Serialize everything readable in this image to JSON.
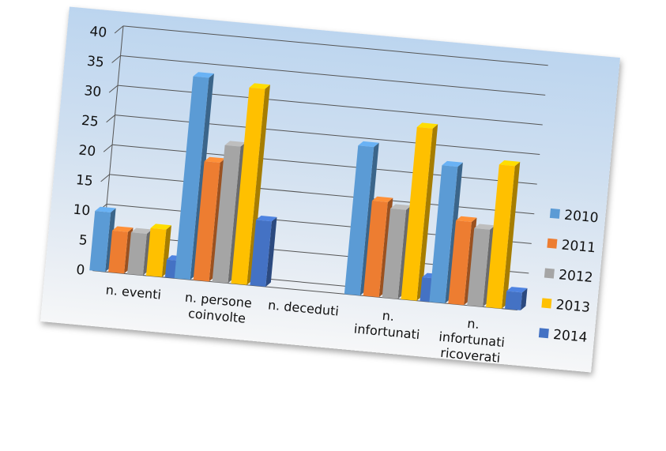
{
  "chart_data": {
    "type": "bar",
    "title": "",
    "xlabel": "",
    "ylabel": "",
    "ylim": [
      0,
      40
    ],
    "yticks": [
      "0",
      "5",
      "10",
      "15",
      "20",
      "25",
      "30",
      "35",
      "40"
    ],
    "categories": [
      [
        "n. eventi"
      ],
      [
        "n. persone",
        "coinvolte"
      ],
      [
        "n. deceduti"
      ],
      [
        "n.",
        "infortunati"
      ],
      [
        "n.",
        "infortunati",
        "ricoverati"
      ]
    ],
    "series": [
      {
        "name": "2010",
        "color": "#5b9bd5",
        "values": [
          10,
          34,
          0,
          25,
          23
        ]
      },
      {
        "name": "2011",
        "color": "#ed7d31",
        "values": [
          7,
          20,
          0,
          16,
          14
        ]
      },
      {
        "name": "2012",
        "color": "#a5a5a5",
        "values": [
          7,
          23,
          0,
          15,
          13
        ]
      },
      {
        "name": "2013",
        "color": "#ffc000",
        "values": [
          8,
          33,
          0,
          29,
          24
        ]
      },
      {
        "name": "2014",
        "color": "#4472c4",
        "values": [
          3,
          11,
          0,
          4,
          3
        ]
      }
    ],
    "grid": true,
    "legend_position": "right"
  }
}
